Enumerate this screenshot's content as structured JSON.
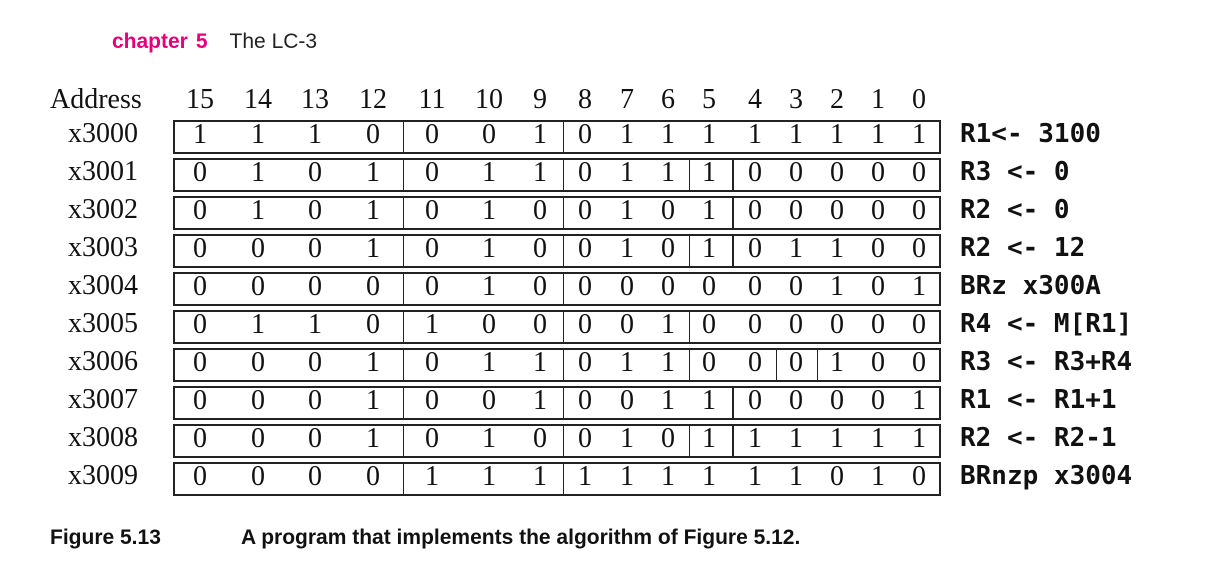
{
  "header": {
    "chapter_word": "chapter",
    "chapter_num": "5",
    "title": "The LC-3"
  },
  "table": {
    "address_label": "Address",
    "bit_labels": [
      "15",
      "14",
      "13",
      "12",
      "11",
      "10",
      "9",
      "8",
      "7",
      "6",
      "5",
      "4",
      "3",
      "2",
      "1",
      "0"
    ],
    "rows": [
      {
        "address": "x3000",
        "bits": [
          "1",
          "1",
          "1",
          "0",
          "0",
          "0",
          "1",
          "0",
          "1",
          "1",
          "1",
          "1",
          "1",
          "1",
          "1",
          "1"
        ],
        "comment": "R1<- 3100"
      },
      {
        "address": "x3001",
        "bits": [
          "0",
          "1",
          "0",
          "1",
          "0",
          "1",
          "1",
          "0",
          "1",
          "1",
          "1",
          "0",
          "0",
          "0",
          "0",
          "0"
        ],
        "comment": "R3 <- 0"
      },
      {
        "address": "x3002",
        "bits": [
          "0",
          "1",
          "0",
          "1",
          "0",
          "1",
          "0",
          "0",
          "1",
          "0",
          "1",
          "0",
          "0",
          "0",
          "0",
          "0"
        ],
        "comment": "R2 <- 0"
      },
      {
        "address": "x3003",
        "bits": [
          "0",
          "0",
          "0",
          "1",
          "0",
          "1",
          "0",
          "0",
          "1",
          "0",
          "1",
          "0",
          "1",
          "1",
          "0",
          "0"
        ],
        "comment": "R2 <- 12"
      },
      {
        "address": "x3004",
        "bits": [
          "0",
          "0",
          "0",
          "0",
          "0",
          "1",
          "0",
          "0",
          "0",
          "0",
          "0",
          "0",
          "0",
          "1",
          "0",
          "1"
        ],
        "comment": "BRz x300A"
      },
      {
        "address": "x3005",
        "bits": [
          "0",
          "1",
          "1",
          "0",
          "1",
          "0",
          "0",
          "0",
          "0",
          "1",
          "0",
          "0",
          "0",
          "0",
          "0",
          "0"
        ],
        "comment": "R4 <- M[R1]"
      },
      {
        "address": "x3006",
        "bits": [
          "0",
          "0",
          "0",
          "1",
          "0",
          "1",
          "1",
          "0",
          "1",
          "1",
          "0",
          "0",
          "0",
          "1",
          "0",
          "0"
        ],
        "comment": "R3 <- R3+R4"
      },
      {
        "address": "x3007",
        "bits": [
          "0",
          "0",
          "0",
          "1",
          "0",
          "0",
          "1",
          "0",
          "0",
          "1",
          "1",
          "0",
          "0",
          "0",
          "0",
          "1"
        ],
        "comment": "R1 <- R1+1"
      },
      {
        "address": "x3008",
        "bits": [
          "0",
          "0",
          "0",
          "1",
          "0",
          "1",
          "0",
          "0",
          "1",
          "0",
          "1",
          "1",
          "1",
          "1",
          "1",
          "1"
        ],
        "comment": "R2 <- R2-1"
      },
      {
        "address": "x3009",
        "bits": [
          "0",
          "0",
          "0",
          "0",
          "1",
          "1",
          "1",
          "1",
          "1",
          "1",
          "1",
          "1",
          "1",
          "0",
          "1",
          "0"
        ],
        "comment": "BRnzp x3004"
      }
    ]
  },
  "caption": {
    "label": "Figure 5.13",
    "text": "A program that implements the algorithm of Figure 5.12."
  }
}
